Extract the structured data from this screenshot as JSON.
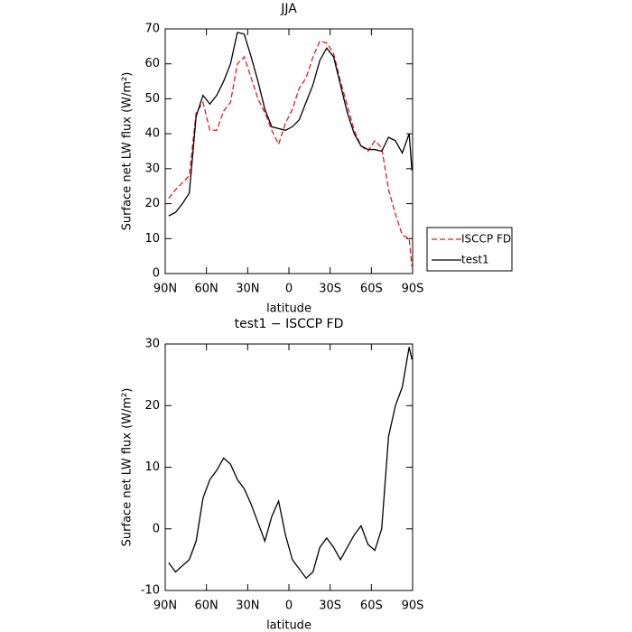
{
  "chart_data": [
    {
      "type": "line",
      "title": "JJA",
      "x_label": "latitude",
      "y_label": "Surface net LW flux (W/m²)",
      "x": [
        87.5,
        82.5,
        77.5,
        72.5,
        67.5,
        62.5,
        57.5,
        52.5,
        47.5,
        42.5,
        37.5,
        32.5,
        27.5,
        22.5,
        17.5,
        12.5,
        7.5,
        2.5,
        -2.5,
        -7.5,
        -12.5,
        -17.5,
        -22.5,
        -27.5,
        -32.5,
        -37.5,
        -42.5,
        -47.5,
        -52.5,
        -57.5,
        -62.5,
        -67.5,
        -72.5,
        -77.5,
        -82.5,
        -87.5,
        -89.5
      ],
      "series": [
        {
          "name": "ISCCP FD",
          "color": "#e8191c",
          "dash": true,
          "values": [
            21.5,
            24,
            26,
            28,
            46,
            49,
            41,
            41,
            46.5,
            49,
            60,
            62,
            56,
            50,
            46,
            41,
            37,
            43,
            47,
            53,
            56,
            62,
            66.5,
            66,
            63,
            55,
            48,
            41,
            36.5,
            35,
            38,
            36,
            24,
            17,
            11,
            10,
            2
          ]
        },
        {
          "name": "test1",
          "color": "#000000",
          "dash": false,
          "values": [
            16.5,
            17.5,
            20,
            23,
            45,
            51,
            48.5,
            51,
            55,
            60,
            69,
            68.5,
            62,
            55,
            47,
            42,
            41.5,
            41,
            42,
            44,
            49,
            54,
            61,
            64.5,
            62,
            54,
            46,
            40,
            36.5,
            35.5,
            35.5,
            35,
            39,
            38,
            34.5,
            40,
            29.5
          ]
        }
      ],
      "xlim": [
        90,
        -90
      ],
      "xticks": [
        {
          "value": 90,
          "label": "90N"
        },
        {
          "value": 60,
          "label": "60N"
        },
        {
          "value": 30,
          "label": "30N"
        },
        0,
        {
          "value": -30,
          "label": "30S"
        },
        {
          "value": -60,
          "label": "60S"
        },
        {
          "value": -90,
          "label": "90S"
        }
      ],
      "ylim": [
        0,
        70
      ],
      "yticks": [
        0,
        10,
        20,
        30,
        40,
        50,
        60,
        70
      ],
      "legend": "right"
    },
    {
      "type": "line",
      "title": "test1 − ISCCP FD",
      "x_label": "latitude",
      "y_label": "Surface net LW flux (W/m²)",
      "x": [
        87.5,
        82.5,
        77.5,
        72.5,
        67.5,
        62.5,
        57.5,
        52.5,
        47.5,
        42.5,
        37.5,
        32.5,
        27.5,
        22.5,
        17.5,
        12.5,
        7.5,
        2.5,
        -2.5,
        -7.5,
        -12.5,
        -17.5,
        -22.5,
        -27.5,
        -32.5,
        -37.5,
        -42.5,
        -47.5,
        -52.5,
        -57.5,
        -62.5,
        -67.5,
        -72.5,
        -77.5,
        -82.5,
        -87.5,
        -89.5
      ],
      "series": [
        {
          "color": "#000000",
          "values": [
            -5.5,
            -7,
            -6,
            -5,
            -2,
            5,
            8,
            9.5,
            11.5,
            10.5,
            8,
            6.5,
            4,
            1,
            -2,
            2,
            4.5,
            -1,
            -5,
            -6.5,
            -8,
            -7,
            -3,
            -1.5,
            -3,
            -5,
            -3,
            -1,
            0.5,
            -2.5,
            -3.5,
            0,
            15,
            20,
            23,
            29.5,
            27.5
          ]
        }
      ],
      "xlim": [
        90,
        -90
      ],
      "xticks": [
        {
          "value": 90,
          "label": "90N"
        },
        {
          "value": 60,
          "label": "60N"
        },
        {
          "value": 30,
          "label": "30N"
        },
        0,
        {
          "value": -30,
          "label": "30S"
        },
        {
          "value": -60,
          "label": "60S"
        },
        {
          "value": -90,
          "label": "90S"
        }
      ],
      "ylim": [
        -10,
        30
      ],
      "yticks": [
        -10,
        0,
        10,
        20,
        30
      ]
    }
  ]
}
